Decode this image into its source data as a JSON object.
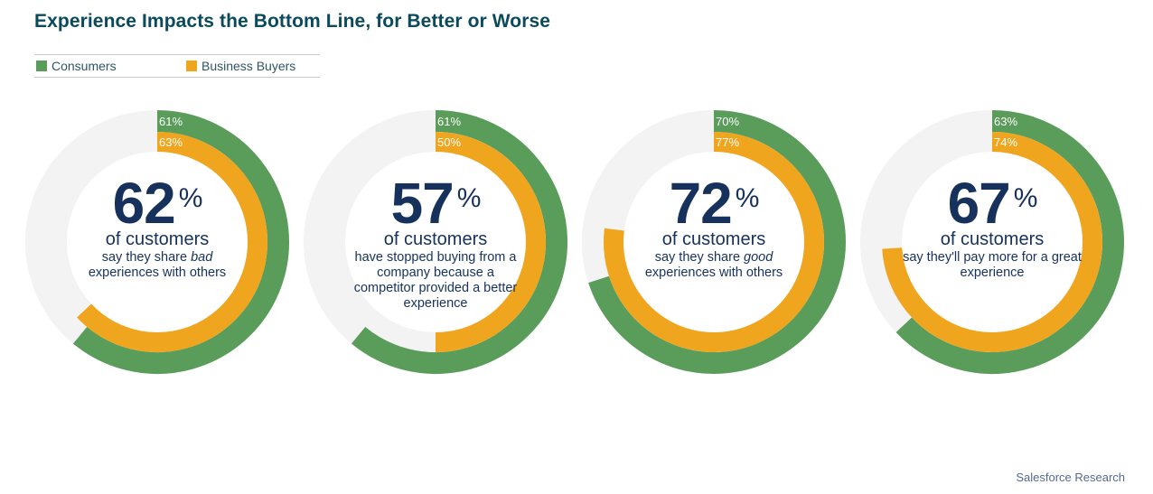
{
  "title": "Experience Impacts the Bottom Line, for Better or Worse",
  "legend": [
    {
      "label": "Consumers",
      "color": "#5a9d5b"
    },
    {
      "label": "Business Buyers",
      "color": "#f0a51f"
    }
  ],
  "chart_data": {
    "type": "donut",
    "series": [
      {
        "name": "Consumers",
        "color": "#5a9d5b"
      },
      {
        "name": "Business Buyers",
        "color": "#f0a51f"
      }
    ],
    "charts": [
      {
        "headline": "62",
        "pct_symbol": "%",
        "subhead": "of customers",
        "description_before": "say they share ",
        "description_emph": "bad",
        "description_after": " experiences with others",
        "consumers": 61,
        "business_buyers": 63,
        "consumers_label": "61%",
        "business_buyers_label": "63%"
      },
      {
        "headline": "57",
        "pct_symbol": "%",
        "subhead": "of customers",
        "description_before": "have stopped buying from a company because a competitor provided a better experience",
        "description_emph": "",
        "description_after": "",
        "consumers": 61,
        "business_buyers": 50,
        "consumers_label": "61%",
        "business_buyers_label": "50%"
      },
      {
        "headline": "72",
        "pct_symbol": "%",
        "subhead": "of customers",
        "description_before": "say they share ",
        "description_emph": "good",
        "description_after": " experiences with others",
        "consumers": 70,
        "business_buyers": 77,
        "consumers_label": "70%",
        "business_buyers_label": "77%"
      },
      {
        "headline": "67",
        "pct_symbol": "%",
        "subhead": "of customers",
        "description_before": "say they'll pay more for a great experience",
        "description_emph": "",
        "description_after": "",
        "consumers": 63,
        "business_buyers": 74,
        "consumers_label": "63%",
        "business_buyers_label": "74%"
      }
    ]
  },
  "footer": "Salesforce Research",
  "colors": {
    "track": "#f4f3f3",
    "heading": "#0b4a5c",
    "text": "#16325c"
  }
}
